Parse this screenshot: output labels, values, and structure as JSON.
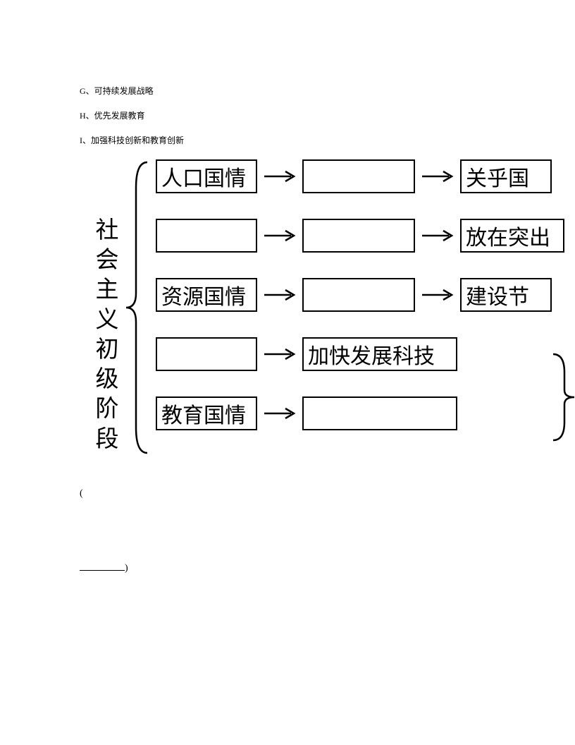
{
  "list": {
    "g": "G、可持续发展战略",
    "h": "H、优先发展教育",
    "i": "I、加强科技创新和教育创新"
  },
  "diagram": {
    "vtitle": "社会主义初级阶段",
    "stroke": "#000000",
    "box_border_width": 2,
    "font_size_box": 30,
    "font_size_title": 33,
    "rows": {
      "r1": {
        "b1": "人口国情",
        "b2": "",
        "b3": "关乎国"
      },
      "r2": {
        "b1": "",
        "b2": "",
        "b3": "放在突出"
      },
      "r3": {
        "b1": "资源国情",
        "b2": "",
        "b3": "建设节"
      },
      "r4": {
        "b1": "",
        "b2": "加快发展科技"
      },
      "r5": {
        "b1": "教育国情",
        "b2": ""
      }
    },
    "box_widths": {
      "r1b1": 144,
      "r1b2": 160,
      "r1b3": 130,
      "r2b1": 144,
      "r2b2": 160,
      "r2b3": 148,
      "r3b1": 144,
      "r3b2": 160,
      "r3b3": 130,
      "r4b1": 144,
      "r4b2": 220,
      "r5b1": 144,
      "r5b2": 220
    },
    "arrow_len": 48
  },
  "footer": {
    "open_paren": "(",
    "close_paren": ")"
  }
}
